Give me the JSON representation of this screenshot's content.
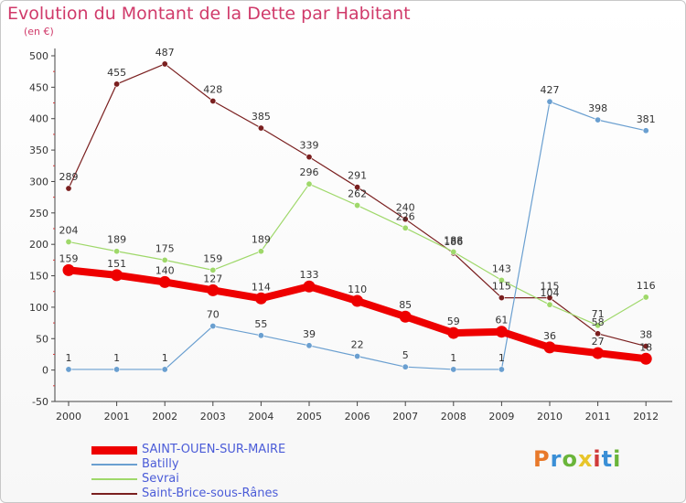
{
  "header": {
    "title": "Evolution du Montant de la Dette par Habitant",
    "unit": "(en €)"
  },
  "logo": {
    "text": "Proxiti",
    "colors": [
      "#e8792a",
      "#3a8fd6",
      "#6ab53a",
      "#e8c52a",
      "#d03a3a",
      "#3a8fd6",
      "#6ab53a"
    ]
  },
  "chart_data": {
    "type": "line",
    "x": [
      "2000",
      "2001",
      "2002",
      "2003",
      "2004",
      "2005",
      "2006",
      "2007",
      "2008",
      "2009",
      "2010",
      "2011",
      "2012"
    ],
    "ylim": [
      -50,
      500
    ],
    "yticks": [
      -50,
      0,
      50,
      100,
      150,
      200,
      250,
      300,
      350,
      400,
      450,
      500
    ],
    "grid": false,
    "legend_position": "bottom-left",
    "series": [
      {
        "name": "SAINT-OUEN-SUR-MAIRE",
        "color": "#ee0000",
        "values": [
          159,
          151,
          140,
          127,
          114,
          133,
          110,
          85,
          59,
          61,
          36,
          27,
          18
        ],
        "labels": [
          "159",
          "151",
          "140",
          "127",
          "114",
          "133",
          "110",
          "85",
          "59",
          "61",
          "36",
          "27",
          "18"
        ]
      },
      {
        "name": "Batilly",
        "color": "#6a9fd0",
        "values": [
          1,
          1,
          1,
          70,
          55,
          39,
          22,
          5,
          1,
          1,
          427,
          398,
          381
        ],
        "labels": [
          "1",
          "1",
          "1",
          "70",
          "55",
          "39",
          "22",
          "5",
          "1",
          "1",
          "427",
          "398",
          "381"
        ]
      },
      {
        "name": "Sevrai",
        "color": "#9fd86a",
        "values": [
          204,
          189,
          175,
          159,
          189,
          296,
          262,
          226,
          188,
          143,
          104,
          71,
          116
        ],
        "labels": [
          "204",
          "189",
          "175",
          "159",
          "189",
          "296",
          "262",
          "226",
          "188",
          "143",
          "104",
          "71",
          "116"
        ]
      },
      {
        "name": "Saint-Brice-sous-Rânes",
        "color": "#7a1f1f",
        "values": [
          289,
          455,
          487,
          428,
          385,
          339,
          291,
          240,
          186,
          115,
          115,
          58,
          38
        ],
        "labels": [
          "289",
          "455",
          "487",
          "428",
          "385",
          "339",
          "291",
          "240",
          "186",
          "115",
          "115",
          "58",
          "38"
        ]
      }
    ]
  }
}
